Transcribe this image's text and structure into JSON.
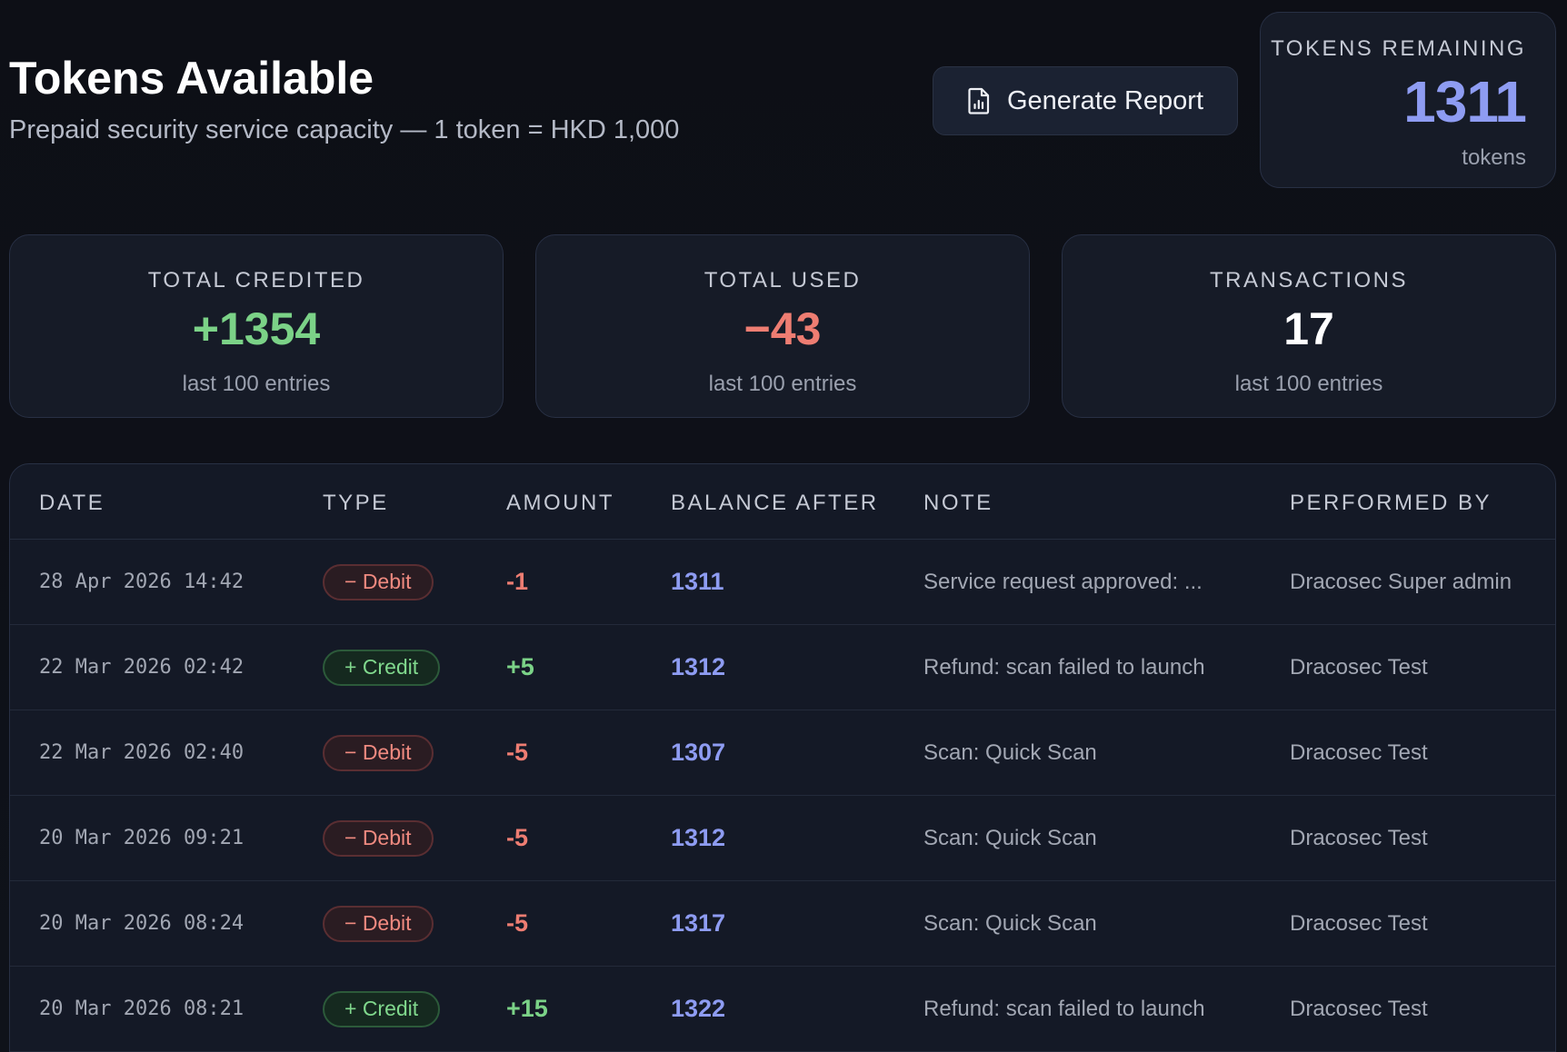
{
  "header": {
    "title": "Tokens Available",
    "subtitle": "Prepaid security service capacity — 1 token = HKD 1,000",
    "generate_label": "Generate Report"
  },
  "remaining": {
    "label": "TOKENS REMAINING",
    "value": "1311",
    "unit": "tokens"
  },
  "stats": [
    {
      "label": "TOTAL CREDITED",
      "value": "+1354",
      "sub": "last 100 entries",
      "color": "#7bd287"
    },
    {
      "label": "TOTAL USED",
      "value": "−43",
      "sub": "last 100 entries",
      "color": "#ee7d72"
    },
    {
      "label": "TRANSACTIONS",
      "value": "17",
      "sub": "last 100 entries",
      "color": "#ffffff"
    }
  ],
  "table": {
    "headers": [
      "DATE",
      "TYPE",
      "AMOUNT",
      "BALANCE AFTER",
      "NOTE",
      "PERFORMED BY"
    ],
    "rows": [
      {
        "date": "28 Apr 2026 14:42",
        "type": "debit",
        "type_label": "− Debit",
        "amount": "-1",
        "balance": "1311",
        "note": "Service request approved: ...",
        "by": "Dracosec Super admin"
      },
      {
        "date": "22 Mar 2026 02:42",
        "type": "credit",
        "type_label": "+ Credit",
        "amount": "+5",
        "balance": "1312",
        "note": "Refund: scan failed to launch",
        "by": "Dracosec Test"
      },
      {
        "date": "22 Mar 2026 02:40",
        "type": "debit",
        "type_label": "− Debit",
        "amount": "-5",
        "balance": "1307",
        "note": "Scan: Quick Scan",
        "by": "Dracosec Test"
      },
      {
        "date": "20 Mar 2026 09:21",
        "type": "debit",
        "type_label": "− Debit",
        "amount": "-5",
        "balance": "1312",
        "note": "Scan: Quick Scan",
        "by": "Dracosec Test"
      },
      {
        "date": "20 Mar 2026 08:24",
        "type": "debit",
        "type_label": "− Debit",
        "amount": "-5",
        "balance": "1317",
        "note": "Scan: Quick Scan",
        "by": "Dracosec Test"
      },
      {
        "date": "20 Mar 2026 08:21",
        "type": "credit",
        "type_label": "+ Credit",
        "amount": "+15",
        "balance": "1322",
        "note": "Refund: scan failed to launch",
        "by": "Dracosec Test"
      }
    ]
  },
  "colors": {
    "accent": "#8e9cf2",
    "credit": "#7bd287",
    "debit": "#ee7d72"
  },
  "icons": {
    "report": "report-document-icon"
  }
}
